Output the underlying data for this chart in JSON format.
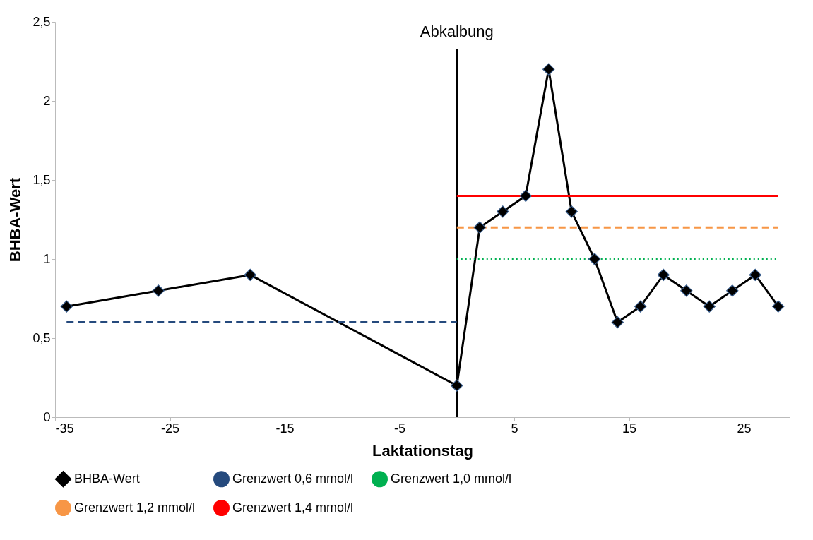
{
  "chart_data": {
    "type": "line",
    "xlabel": "Laktationstag",
    "ylabel": "BHBA-Wert",
    "xlim": [
      -35,
      29
    ],
    "xticks": [
      -35,
      -25,
      -15,
      -5,
      5,
      15,
      25
    ],
    "ylim": [
      0,
      2.5
    ],
    "yticks": [
      0,
      {
        "value": 0.5,
        "label": "0,5"
      },
      1,
      {
        "value": 1.5,
        "label": "1,5"
      },
      2,
      {
        "value": 2.5,
        "label": "2,5"
      }
    ],
    "grid": false,
    "legend": "bottom",
    "ref_lines": [
      {
        "axis": "x",
        "value": 0,
        "label": "Abkalbung",
        "color": "#000000"
      }
    ],
    "series": [
      {
        "name": "BHBA-Wert",
        "color": "#000000",
        "marker": "diamond",
        "line_style": "solid",
        "x": [
          -34,
          -26,
          -18,
          0,
          2,
          4,
          6,
          8,
          10,
          12,
          14,
          16,
          18,
          20,
          22,
          24,
          26,
          28
        ],
        "values": [
          0.7,
          0.8,
          0.9,
          0.2,
          1.2,
          1.3,
          1.4,
          2.2,
          1.3,
          1.0,
          0.6,
          0.7,
          0.9,
          0.8,
          0.7,
          0.8,
          0.9,
          0.7
        ]
      },
      {
        "name": "Grenzwert 0,6 mmol/l",
        "color": "#254a7d",
        "marker": "none",
        "line_style": "dashed",
        "x": [
          -34,
          0
        ],
        "values": [
          0.6,
          0.6
        ]
      },
      {
        "name": "Grenzwert 1,0 mmol/l",
        "color": "#00b050",
        "marker": "none",
        "line_style": "dotted",
        "x": [
          0,
          28
        ],
        "values": [
          1.0,
          1.0
        ]
      },
      {
        "name": "Grenzwert 1,2 mmol/l",
        "color": "#f79646",
        "marker": "none",
        "line_style": "dashed",
        "x": [
          0,
          28
        ],
        "values": [
          1.2,
          1.2
        ]
      },
      {
        "name": "Grenzwert 1,4 mmol/l",
        "color": "#ff0000",
        "marker": "none",
        "line_style": "solid",
        "x": [
          0,
          28
        ],
        "values": [
          1.4,
          1.4
        ]
      }
    ]
  }
}
